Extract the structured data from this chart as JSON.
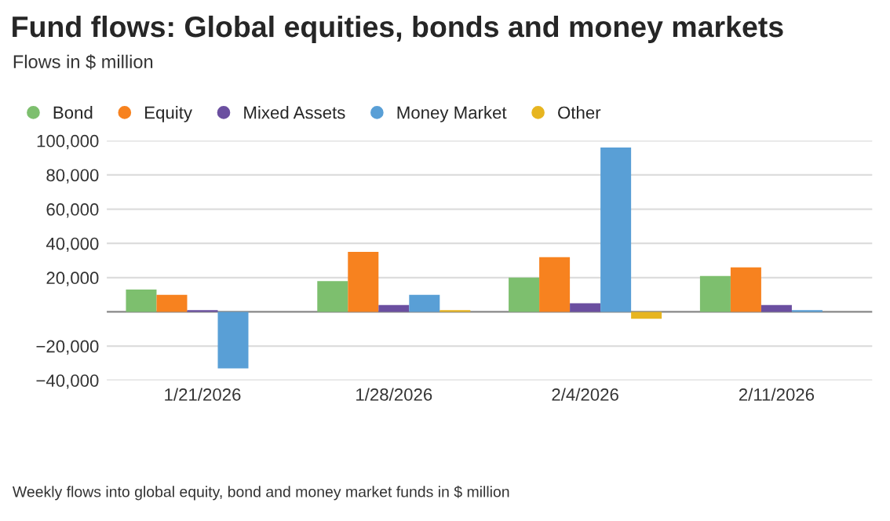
{
  "chart_data": {
    "type": "bar",
    "title": "Fund flows: Global equities, bonds and money markets",
    "subtitle": "Flows in $ million",
    "categories": [
      "1/21/2026",
      "1/28/2026",
      "2/4/2026",
      "2/11/2026"
    ],
    "series": [
      {
        "name": "Bond",
        "color": "#7dbf6e",
        "values": [
          13000,
          18000,
          20000,
          21000
        ]
      },
      {
        "name": "Equity",
        "color": "#f7821f",
        "values": [
          10000,
          35000,
          32000,
          26000
        ]
      },
      {
        "name": "Mixed Assets",
        "color": "#6b4fa0",
        "values": [
          1000,
          4000,
          5000,
          4000
        ]
      },
      {
        "name": "Money Market",
        "color": "#599fd6",
        "values": [
          -33000,
          10000,
          96000,
          1000
        ]
      },
      {
        "name": "Other",
        "color": "#e7b520",
        "values": [
          0,
          1000,
          -4000,
          0
        ]
      }
    ],
    "ylim": [
      -40000,
      100000
    ],
    "yticks": [
      {
        "value": -40000,
        "label": "−40,000"
      },
      {
        "value": -20000,
        "label": "−20,000"
      },
      {
        "value": 20000,
        "label": "20,000"
      },
      {
        "value": 40000,
        "label": "40,000"
      },
      {
        "value": 60000,
        "label": "60,000"
      },
      {
        "value": 80000,
        "label": "80,000"
      },
      {
        "value": 100000,
        "label": "100,000"
      }
    ],
    "grid": "y",
    "legend": "top left",
    "annotations": [
      "Weekly flows into global equity, bond and money market funds in $ million"
    ]
  }
}
